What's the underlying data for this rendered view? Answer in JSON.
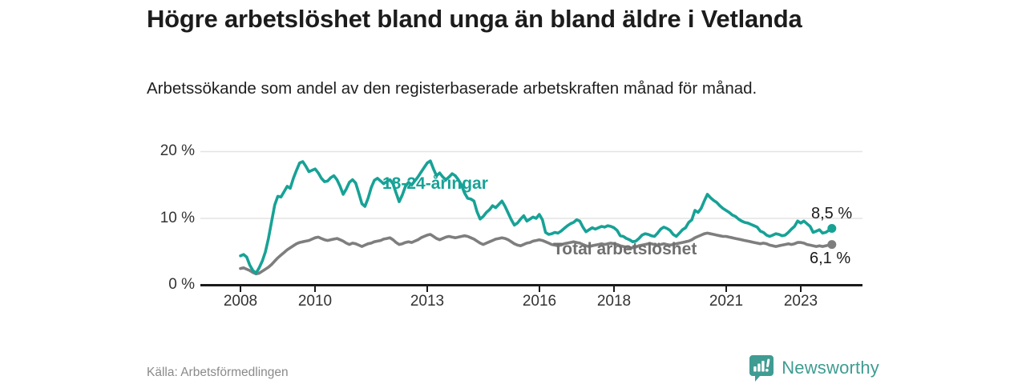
{
  "header": {
    "title": "Högre arbetslöshet bland unga än bland äldre i Vetlanda",
    "subtitle": "Arbetssökande som andel av den registerbaserade arbetskraften månad för månad."
  },
  "footer": {
    "source": "Källa: Arbetsförmedlingen",
    "brand": "Newsworthy"
  },
  "colors": {
    "young_line": "#17a296",
    "total_line": "#7e7e7e",
    "total_label": "#6f6f6f",
    "axis": "#1a1a1a",
    "gridline": "#e3e3e3",
    "brand_teal": "#3f9c92"
  },
  "chart_data": {
    "type": "line",
    "title": "Högre arbetslöshet bland unga än bland äldre i Vetlanda",
    "subtitle": "Arbetssökande som andel av den registerbaserade arbetskraften månad för månad.",
    "unit": "%",
    "x_start": "2008-01",
    "x_end": "2023-11",
    "x_step_months": 1,
    "ylim": [
      0,
      21
    ],
    "grid": "horizontal",
    "legend_position": "inline-labels",
    "y_ticks": [
      {
        "value": 20,
        "label": "20 %"
      },
      {
        "value": 10,
        "label": "10 %"
      },
      {
        "value": 0,
        "label": "0 %"
      }
    ],
    "x_ticks": [
      {
        "year": 2008,
        "label": "2008"
      },
      {
        "year": 2010,
        "label": "2010"
      },
      {
        "year": 2013,
        "label": "2013"
      },
      {
        "year": 2016,
        "label": "2016"
      },
      {
        "year": 2018,
        "label": "2018"
      },
      {
        "year": 2021,
        "label": "2021"
      },
      {
        "year": 2023,
        "label": "2023"
      }
    ],
    "series": [
      {
        "id": "young",
        "name": "18-24-åringar",
        "color": "#17a296",
        "end_label": "8,5 %",
        "end_value": 8.5,
        "values": [
          4.4,
          4.6,
          4.2,
          3.0,
          2.2,
          1.8,
          2.6,
          3.6,
          5.0,
          7.0,
          9.5,
          12.0,
          13.3,
          13.2,
          14.0,
          14.8,
          14.5,
          16.0,
          17.2,
          18.3,
          18.5,
          17.8,
          17.0,
          17.2,
          17.4,
          16.8,
          16.0,
          15.5,
          15.6,
          16.1,
          16.4,
          15.8,
          14.8,
          13.6,
          14.4,
          15.4,
          15.8,
          15.3,
          13.8,
          12.2,
          11.8,
          13.0,
          14.6,
          15.7,
          16.0,
          15.6,
          15.2,
          15.5,
          15.8,
          15.2,
          13.8,
          12.5,
          13.5,
          14.8,
          15.4,
          15.0,
          15.6,
          16.2,
          16.9,
          17.6,
          18.3,
          18.6,
          17.4,
          16.4,
          16.8,
          16.2,
          15.8,
          16.2,
          16.7,
          16.4,
          15.8,
          15.0,
          13.8,
          13.0,
          12.9,
          12.6,
          11.0,
          9.9,
          10.3,
          10.9,
          11.3,
          11.9,
          11.6,
          12.1,
          12.6,
          11.8,
          10.8,
          9.8,
          9.0,
          9.3,
          9.9,
          10.4,
          9.6,
          9.9,
          10.2,
          10.0,
          10.6,
          9.8,
          7.9,
          7.6,
          7.7,
          7.9,
          7.8,
          8.1,
          8.5,
          8.9,
          9.2,
          9.4,
          9.8,
          9.6,
          8.7,
          8.0,
          8.3,
          8.6,
          8.4,
          8.6,
          8.8,
          8.7,
          8.9,
          8.8,
          8.6,
          8.2,
          7.4,
          7.3,
          7.0,
          6.8,
          6.5,
          6.6,
          7.0,
          7.5,
          7.7,
          7.6,
          7.4,
          7.3,
          7.8,
          8.4,
          8.7,
          8.5,
          8.2,
          7.6,
          7.3,
          7.8,
          8.3,
          8.6,
          9.4,
          9.8,
          11.2,
          10.9,
          11.5,
          12.6,
          13.6,
          13.1,
          12.7,
          12.4,
          11.9,
          11.5,
          11.2,
          10.9,
          10.5,
          10.3,
          9.9,
          9.6,
          9.4,
          9.3,
          9.1,
          8.9,
          8.7,
          8.1,
          7.9,
          7.5,
          7.3,
          7.5,
          7.7,
          7.6,
          7.4,
          7.5,
          7.9,
          8.4,
          8.8,
          9.6,
          9.3,
          9.6,
          9.2,
          8.8,
          7.9,
          8.1,
          8.3,
          7.8,
          7.9,
          8.2,
          8.5
        ]
      },
      {
        "id": "total",
        "name": "Total arbetslöshet",
        "color": "#7e7e7e",
        "end_label": "6,1 %",
        "end_value": 6.1,
        "values": [
          2.5,
          2.6,
          2.4,
          2.2,
          1.9,
          1.7,
          1.8,
          2.1,
          2.4,
          2.7,
          3.1,
          3.6,
          4.1,
          4.5,
          4.9,
          5.3,
          5.6,
          5.9,
          6.2,
          6.4,
          6.5,
          6.6,
          6.7,
          6.9,
          7.1,
          7.2,
          7.0,
          6.8,
          6.7,
          6.8,
          6.9,
          7.0,
          6.8,
          6.6,
          6.3,
          6.1,
          6.3,
          6.2,
          6.0,
          5.8,
          6.0,
          6.2,
          6.3,
          6.5,
          6.6,
          6.7,
          6.9,
          7.0,
          7.1,
          6.8,
          6.4,
          6.1,
          6.2,
          6.4,
          6.5,
          6.4,
          6.6,
          6.8,
          7.1,
          7.3,
          7.5,
          7.6,
          7.3,
          7.0,
          6.8,
          7.0,
          7.2,
          7.3,
          7.2,
          7.1,
          7.2,
          7.3,
          7.4,
          7.3,
          7.1,
          6.9,
          6.6,
          6.3,
          6.1,
          6.3,
          6.5,
          6.7,
          6.9,
          7.0,
          7.1,
          7.0,
          6.8,
          6.5,
          6.2,
          6.0,
          5.9,
          6.1,
          6.3,
          6.4,
          6.6,
          6.7,
          6.8,
          6.7,
          6.5,
          6.3,
          6.1,
          6.0,
          5.9,
          6.0,
          6.2,
          6.3,
          6.4,
          6.5,
          6.4,
          6.3,
          6.1,
          5.9,
          5.8,
          5.9,
          6.0,
          6.1,
          6.2,
          6.1,
          6.2,
          6.3,
          6.2,
          6.1,
          5.9,
          5.8,
          5.7,
          5.6,
          5.6,
          5.7,
          5.9,
          6.0,
          6.1,
          6.2,
          6.2,
          6.1,
          6.0,
          6.1,
          6.2,
          6.1,
          6.0,
          6.1,
          6.2,
          6.3,
          6.4,
          6.5,
          6.6,
          6.8,
          7.1,
          7.3,
          7.5,
          7.7,
          7.8,
          7.7,
          7.6,
          7.5,
          7.4,
          7.3,
          7.3,
          7.2,
          7.1,
          7.0,
          6.9,
          6.8,
          6.7,
          6.6,
          6.5,
          6.4,
          6.3,
          6.2,
          6.3,
          6.2,
          6.0,
          5.9,
          5.8,
          5.9,
          6.0,
          6.1,
          6.2,
          6.1,
          6.2,
          6.4,
          6.4,
          6.3,
          6.1,
          6.0,
          5.9,
          5.8,
          5.9,
          5.8,
          5.9,
          6.0,
          6.1
        ]
      }
    ]
  }
}
